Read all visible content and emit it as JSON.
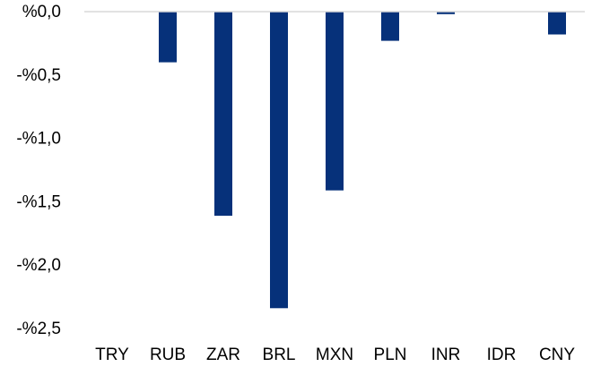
{
  "chart_data": {
    "type": "bar",
    "title": "",
    "xlabel": "",
    "ylabel": "",
    "categories": [
      "TRY",
      "RUB",
      "ZAR",
      "BRL",
      "MXN",
      "PLN",
      "INR",
      "IDR",
      "CNY"
    ],
    "values": [
      0.0,
      -0.4,
      -1.61,
      -2.34,
      -1.41,
      -0.23,
      -0.02,
      0.0,
      -0.18
    ],
    "ylim": [
      -2.5,
      0.0
    ],
    "yticks": [
      0.0,
      -0.5,
      -1.0,
      -1.5,
      -2.0,
      -2.5
    ],
    "ytick_labels": [
      "%0,0",
      "-%0,5",
      "-%1,0",
      "-%1,5",
      "-%2,0",
      "-%2,5"
    ],
    "grid": false,
    "legend": "none",
    "colors": {
      "bar": "#06317A",
      "baseline": "#D9D9D9",
      "text": "#000000"
    }
  }
}
